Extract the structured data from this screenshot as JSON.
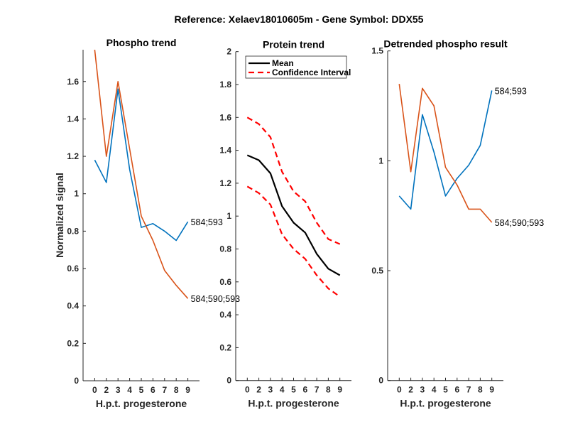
{
  "suptitle": "Reference:  Xelaev18010605m - Gene Symbol:  DDX55",
  "colors": {
    "site_584_593": "#0072BD",
    "site_584_590_593": "#D95319",
    "mean": "#000000",
    "ci": "#FF0000"
  },
  "chart_data": [
    {
      "type": "line",
      "title": "Phospho trend",
      "xlabel": "H.p.t. progesterone",
      "ylabel": "Normalized signal",
      "categories": [
        "0",
        "2",
        "3",
        "4",
        "5",
        "6",
        "7",
        "8",
        "9"
      ],
      "ylim": [
        0,
        1.77
      ],
      "yticks": [
        0,
        0.2,
        0.4,
        0.6,
        0.8,
        1,
        1.2,
        1.4,
        1.6
      ],
      "ytick_labels": [
        "0",
        "0.2",
        "0.4",
        "0.6",
        "0.8",
        "1",
        "1.2",
        "1.4",
        "1.6"
      ],
      "series": [
        {
          "name": "584;593",
          "color": "#0072BD",
          "style": "solid",
          "values": [
            1.18,
            1.06,
            1.56,
            1.13,
            0.82,
            0.84,
            0.8,
            0.75,
            0.85
          ]
        },
        {
          "name": "584;590;593",
          "color": "#D95319",
          "style": "solid",
          "values": [
            1.77,
            1.2,
            1.6,
            1.24,
            0.88,
            0.75,
            0.59,
            0.51,
            0.44
          ]
        }
      ],
      "end_labels": true
    },
    {
      "type": "line",
      "title": "Protein trend",
      "xlabel": "H.p.t. progesterone",
      "ylabel": "",
      "categories": [
        "0",
        "2",
        "3",
        "4",
        "5",
        "6",
        "7",
        "8",
        "9"
      ],
      "ylim": [
        0,
        2
      ],
      "yticks": [
        0,
        0.2,
        0.4,
        0.6,
        0.8,
        1,
        1.2,
        1.4,
        1.6,
        1.8,
        2
      ],
      "ytick_labels": [
        "0",
        "0.2",
        "0.4",
        "0.6",
        "0.8",
        "1",
        "1.2",
        "1.4",
        "1.6",
        "1.8",
        "2"
      ],
      "series": [
        {
          "name": "Mean",
          "color": "#000000",
          "style": "solid",
          "values": [
            1.37,
            1.34,
            1.26,
            1.06,
            0.96,
            0.9,
            0.77,
            0.68,
            0.64
          ]
        },
        {
          "name": "Confidence Interval",
          "color": "#FF0000",
          "style": "dashed",
          "values": [
            1.6,
            1.56,
            1.48,
            1.27,
            1.15,
            1.09,
            0.96,
            0.86,
            0.83
          ]
        },
        {
          "name": "Confidence Interval",
          "color": "#FF0000",
          "style": "dashed",
          "values": [
            1.18,
            1.14,
            1.07,
            0.89,
            0.8,
            0.74,
            0.64,
            0.56,
            0.51
          ]
        }
      ],
      "legend": {
        "placement": "top-right",
        "entries": [
          "Mean",
          "Confidence Interval"
        ]
      },
      "end_labels": false
    },
    {
      "type": "line",
      "title": "Detrended phospho result",
      "xlabel": "H.p.t. progesterone",
      "ylabel": "",
      "categories": [
        "0",
        "2",
        "3",
        "4",
        "5",
        "6",
        "7",
        "8",
        "9"
      ],
      "ylim": [
        0,
        1.5
      ],
      "yticks": [
        0,
        0.5,
        1,
        1.5
      ],
      "ytick_labels": [
        "0",
        "0.5",
        "1",
        "1.5"
      ],
      "series": [
        {
          "name": "584;593",
          "color": "#0072BD",
          "style": "solid",
          "values": [
            0.84,
            0.78,
            1.21,
            1.04,
            0.84,
            0.92,
            0.98,
            1.07,
            1.32
          ]
        },
        {
          "name": "584;590;593",
          "color": "#D95319",
          "style": "solid",
          "values": [
            1.35,
            0.95,
            1.33,
            1.25,
            0.97,
            0.89,
            0.78,
            0.78,
            0.72
          ]
        }
      ],
      "end_labels": true
    }
  ]
}
